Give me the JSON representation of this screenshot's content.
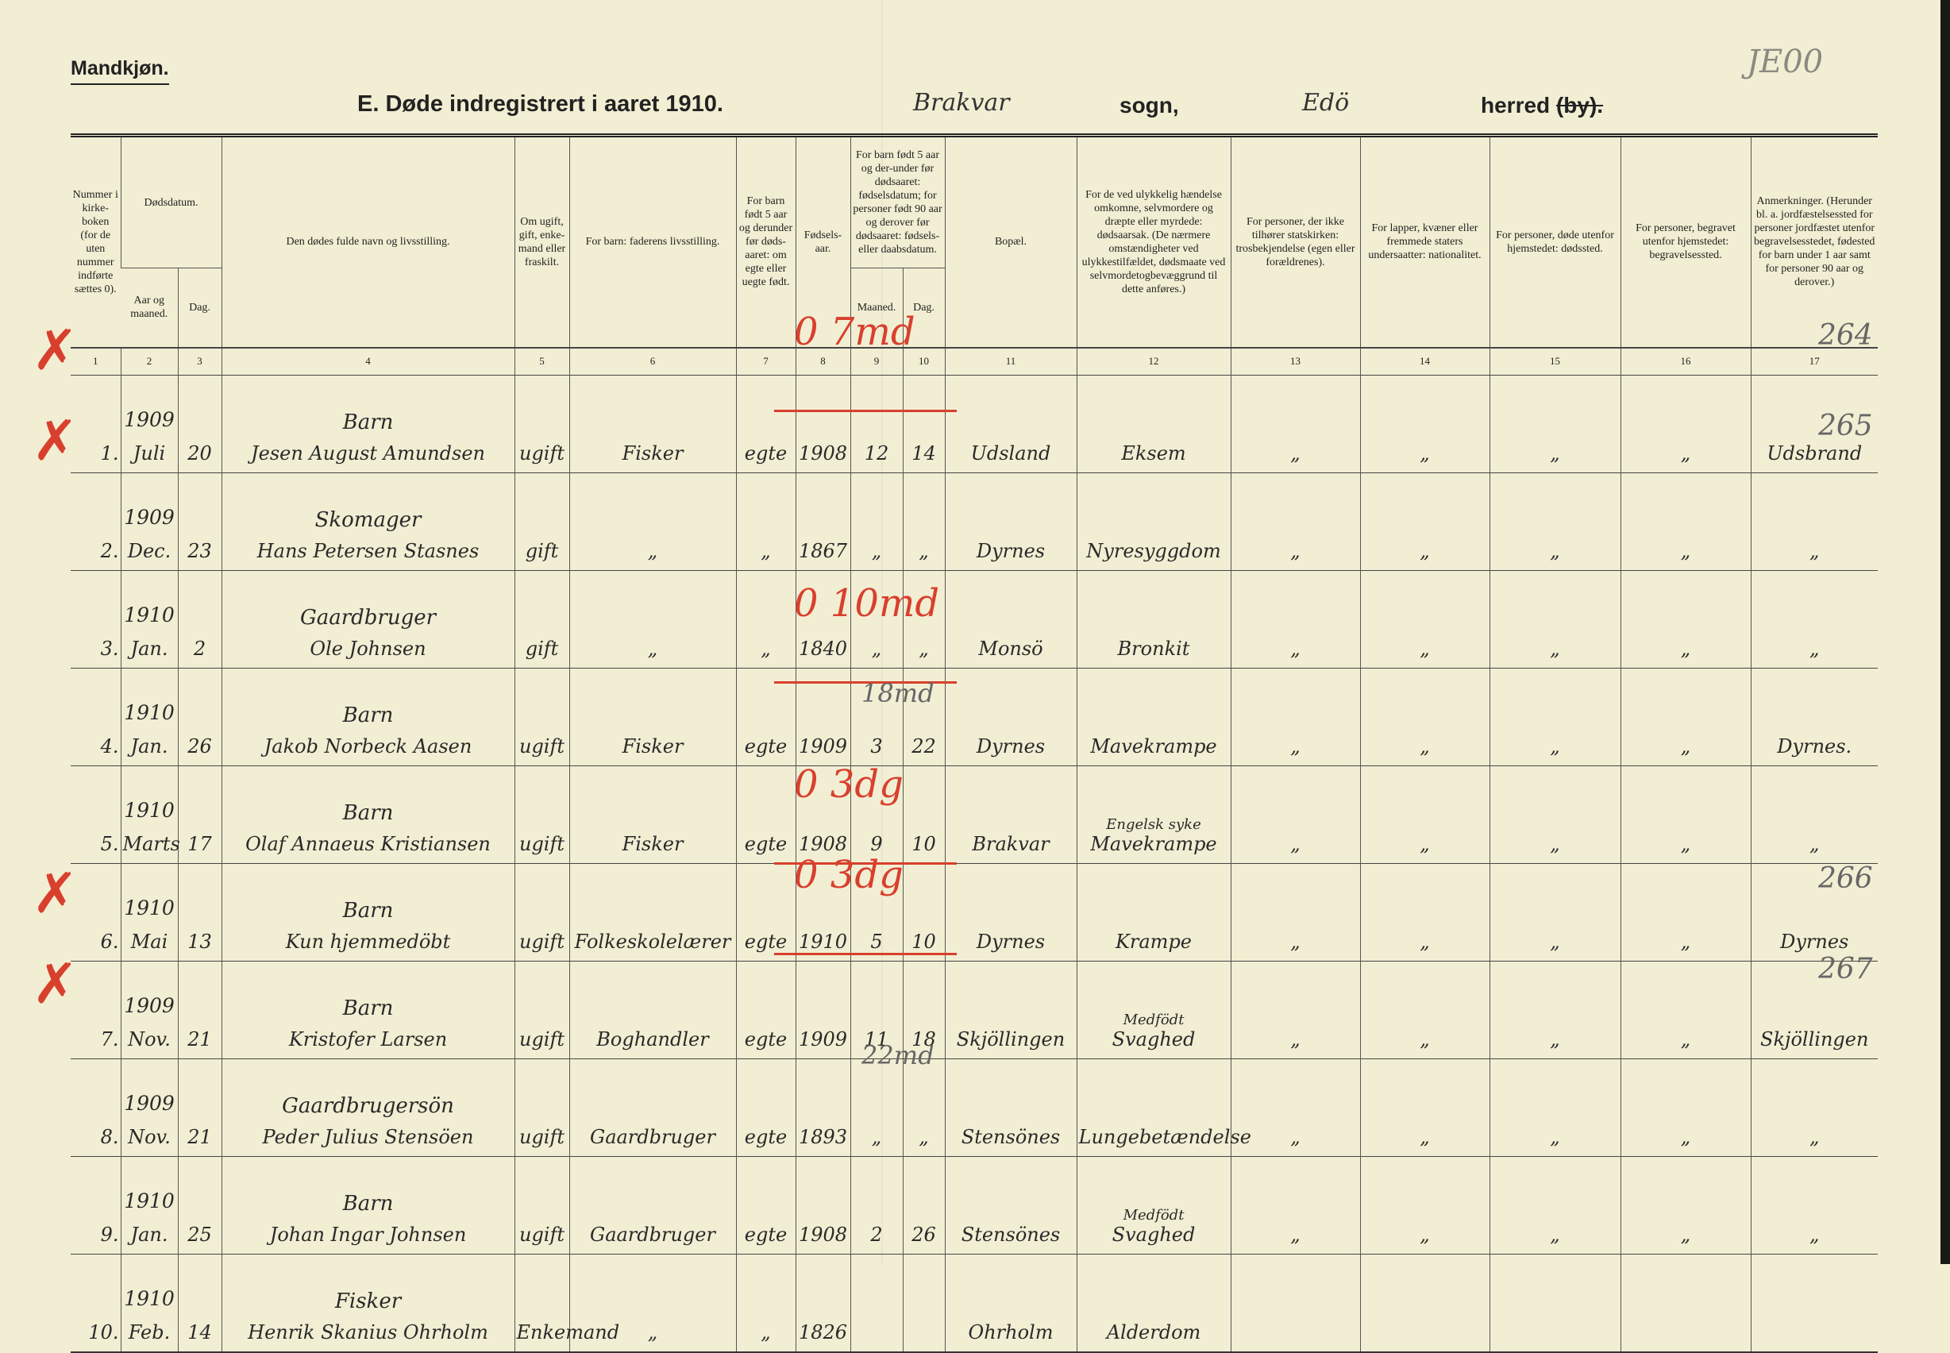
{
  "header": {
    "gender": "Mandkjøn.",
    "title": "E. Døde indregistrert i aaret 1910.",
    "parish_handwritten": "Brakvar",
    "sogn_label": "sogn,",
    "herred_handwritten": "Edö",
    "herred_label": "herred",
    "by_struck": "(by).",
    "corner_mark": "JE00"
  },
  "columns": {
    "c1": "Nummer i kirke-boken (for de uten nummer indførte sættes 0).",
    "c23": "Dødsdatum.",
    "c2": "Aar og maaned.",
    "c3": "Dag.",
    "c4": "Den dødes fulde navn og livsstilling.",
    "c5": "Om ugift, gift, enke-mand eller fraskilt.",
    "c6": "For barn: faderens livsstilling.",
    "c7": "For barn født 5 aar og derunder før døds-aaret: om egte eller uegte født.",
    "c8": "Fødsels-aar.",
    "c910": "For barn født 5 aar og der-under før dødsaaret: fødselsdatum; for personer født 90 aar og derover før dødsaaret: fødsels- eller daabsdatum.",
    "c9": "Maaned.",
    "c10": "Dag.",
    "c11": "Bopæl.",
    "c12": "For de ved ulykkelig hændelse omkomne, selvmordere og dræpte eller myrdede: dødsaarsak. (De nærmere omstændigheter ved ulykkestilfældet, dødsmaate ved selvmordetogbevæggrund til dette anføres.)",
    "c13": "For personer, der ikke tilhører statskirken: trosbekjendelse (egen eller forældrenes).",
    "c14": "For lapper, kvæner eller fremmede staters undersaatter: nationalitet.",
    "c15": "For personer, døde utenfor hjemstedet: dødssted.",
    "c16": "For personer, begravet utenfor hjemstedet: begravelsessted.",
    "c17": "Anmerkninger. (Herunder bl. a. jordfæstelsessted for personer jordfæstet utenfor begravelsesstedet, fødested for barn under 1 aar samt for personer 90 aar og derover.)",
    "numbers": [
      "1",
      "2",
      "3",
      "4",
      "5",
      "6",
      "7",
      "8",
      "9",
      "10",
      "11",
      "12",
      "13",
      "14",
      "15",
      "16",
      "17"
    ]
  },
  "rows": [
    {
      "no": "1.",
      "year": "1909",
      "month": "Juli",
      "day": "20",
      "title": "Barn",
      "name": "Jesen August Amundsen",
      "civil": "ugift",
      "father": "Fisker",
      "legit": "egte",
      "birth_year": "1908",
      "b_month": "12",
      "b_day": "14",
      "residence": "Udsland",
      "cause_top": "",
      "cause": "Eksem",
      "c13": "„",
      "c14": "„",
      "c15": "„",
      "c16": "„",
      "remark": "Udsbrand",
      "remark_num": "264",
      "red_note": "0 7md",
      "pencil_note": "",
      "crossed": true
    },
    {
      "no": "2.",
      "year": "1909",
      "month": "Dec.",
      "day": "23",
      "title": "Skomager",
      "name": "Hans Petersen Stasnes",
      "civil": "gift",
      "father": "„",
      "legit": "„",
      "birth_year": "1867",
      "b_month": "„",
      "b_day": "„",
      "residence": "Dyrnes",
      "cause_top": "",
      "cause": "Nyresyggdom",
      "c13": "„",
      "c14": "„",
      "c15": "„",
      "c16": "„",
      "remark": "„",
      "remark_num": "265",
      "red_note": "",
      "pencil_note": "",
      "crossed": true
    },
    {
      "no": "3.",
      "year": "1910",
      "month": "Jan.",
      "day": "2",
      "title": "Gaardbruger",
      "name": "Ole Johnsen",
      "civil": "gift",
      "father": "„",
      "legit": "„",
      "birth_year": "1840",
      "b_month": "„",
      "b_day": "„",
      "residence": "Monsö",
      "cause_top": "",
      "cause": "Bronkit",
      "c13": "„",
      "c14": "„",
      "c15": "„",
      "c16": "„",
      "remark": "„",
      "remark_num": "",
      "red_note": "",
      "pencil_note": "",
      "crossed": false
    },
    {
      "no": "4.",
      "year": "1910",
      "month": "Jan.",
      "day": "26",
      "title": "Barn",
      "name": "Jakob Norbeck Aasen",
      "civil": "ugift",
      "father": "Fisker",
      "legit": "egte",
      "birth_year": "1909",
      "b_month": "3",
      "b_day": "22",
      "residence": "Dyrnes",
      "cause_top": "",
      "cause": "Mavekrampe",
      "c13": "„",
      "c14": "„",
      "c15": "„",
      "c16": "„",
      "remark": "Dyrnes.",
      "remark_num": "",
      "red_note": "0 10md",
      "pencil_note": "",
      "crossed": false
    },
    {
      "no": "5.",
      "year": "1910",
      "month": "Marts",
      "day": "17",
      "title": "Barn",
      "name": "Olaf Annaeus Kristiansen",
      "civil": "ugift",
      "father": "Fisker",
      "legit": "egte",
      "birth_year": "1908",
      "b_month": "9",
      "b_day": "10",
      "residence": "Brakvar",
      "cause_top": "Engelsk syke",
      "cause": "Mavekrampe",
      "c13": "„",
      "c14": "„",
      "c15": "„",
      "c16": "„",
      "remark": "„",
      "remark_num": "",
      "red_note": "",
      "pencil_note": "18md",
      "crossed": false
    },
    {
      "no": "6.",
      "year": "1910",
      "month": "Mai",
      "day": "13",
      "title": "Barn",
      "name": "Kun hjemmedöbt",
      "civil": "ugift",
      "father": "Folkeskolelærer",
      "legit": "egte",
      "birth_year": "1910",
      "b_month": "5",
      "b_day": "10",
      "residence": "Dyrnes",
      "cause_top": "",
      "cause": "Krampe",
      "c13": "„",
      "c14": "„",
      "c15": "„",
      "c16": "„",
      "remark": "Dyrnes",
      "remark_num": "",
      "red_note": "0 3dg",
      "pencil_note": "",
      "crossed": false
    },
    {
      "no": "7.",
      "year": "1909",
      "month": "Nov.",
      "day": "21",
      "title": "Barn",
      "name": "Kristofer Larsen",
      "civil": "ugift",
      "father": "Boghandler",
      "legit": "egte",
      "birth_year": "1909",
      "b_month": "11",
      "b_day": "18",
      "residence": "Skjöllingen",
      "cause_top": "Medfödt",
      "cause": "Svaghed",
      "c13": "„",
      "c14": "„",
      "c15": "„",
      "c16": "„",
      "remark": "Skjöllingen",
      "remark_num": "266",
      "red_note": "0 3dg",
      "pencil_note": "",
      "crossed": true
    },
    {
      "no": "8.",
      "year": "1909",
      "month": "Nov.",
      "day": "21",
      "title": "Gaardbrugersön",
      "name": "Peder Julius Stensöen",
      "civil": "ugift",
      "father": "Gaardbruger",
      "legit": "egte",
      "birth_year": "1893",
      "b_month": "„",
      "b_day": "„",
      "residence": "Stensönes",
      "cause_top": "",
      "cause": "Lungebetændelse",
      "c13": "„",
      "c14": "„",
      "c15": "„",
      "c16": "„",
      "remark": "„",
      "remark_num": "267",
      "red_note": "",
      "pencil_note": "",
      "crossed": true
    },
    {
      "no": "9.",
      "year": "1910",
      "month": "Jan.",
      "day": "25",
      "title": "Barn",
      "name": "Johan Ingar Johnsen",
      "civil": "ugift",
      "father": "Gaardbruger",
      "legit": "egte",
      "birth_year": "1908",
      "b_month": "2",
      "b_day": "26",
      "residence": "Stensönes",
      "cause_top": "Medfödt",
      "cause": "Svaghed",
      "c13": "„",
      "c14": "„",
      "c15": "„",
      "c16": "„",
      "remark": "„",
      "remark_num": "",
      "red_note": "",
      "pencil_note": "22md",
      "crossed": false
    },
    {
      "no": "10.",
      "year": "1910",
      "month": "Feb.",
      "day": "14",
      "title": "Fisker",
      "name": "Henrik Skanius Ohrholm",
      "civil": "Enkemand",
      "father": "„",
      "legit": "„",
      "birth_year": "1826",
      "b_month": "",
      "b_day": "",
      "residence": "Ohrholm",
      "cause_top": "",
      "cause": "Alderdom",
      "c13": "",
      "c14": "",
      "c15": "",
      "c16": "",
      "remark": "",
      "remark_num": "",
      "red_note": "",
      "pencil_note": "",
      "crossed": false
    }
  ],
  "colors": {
    "paper": "#f2eed3",
    "ink": "#2a2a2a",
    "red_pencil": "#d8402d"
  }
}
